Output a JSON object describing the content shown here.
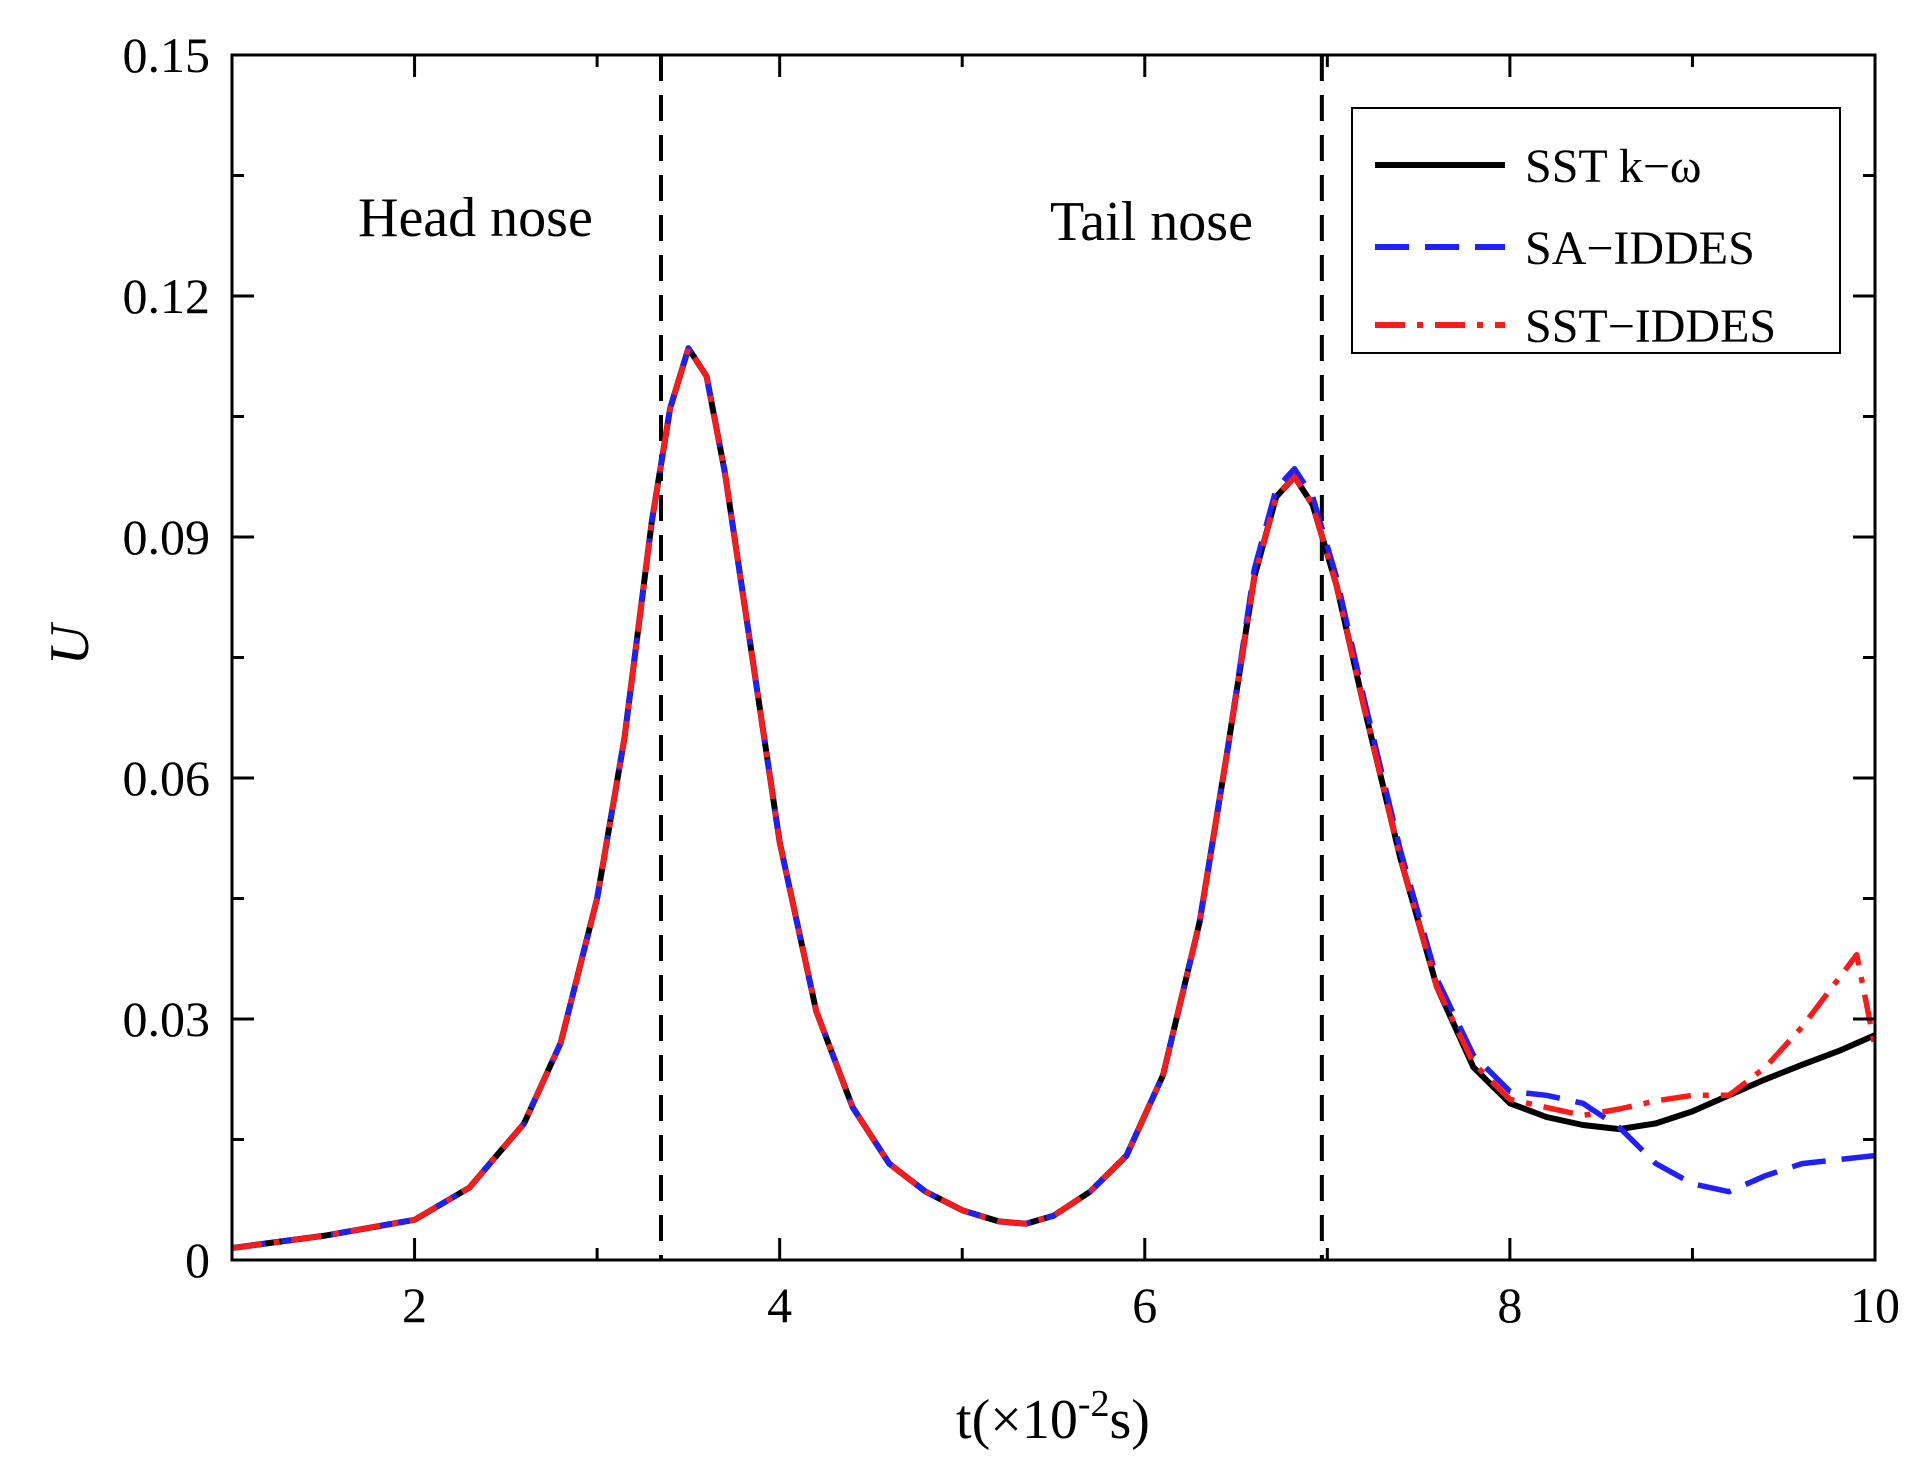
{
  "chart_data": {
    "type": "line",
    "title": "",
    "xlabel": "t(×10",
    "xlabel_sup": "-2",
    "xlabel_end": "s)",
    "ylabel": "U",
    "xlim": [
      1,
      10
    ],
    "ylim": [
      0,
      0.15
    ],
    "x_ticks": [
      2,
      4,
      6,
      8,
      10
    ],
    "x_tick_labels": [
      "2",
      "4",
      "6",
      "8",
      "10"
    ],
    "y_ticks": [
      0,
      0.03,
      0.06,
      0.09,
      0.12,
      0.15
    ],
    "y_tick_labels": [
      "0",
      "0.03",
      "0.06",
      "0.09",
      "0.12",
      "0.15"
    ],
    "grid": false,
    "legend_position": "top-right",
    "reference_lines": [
      {
        "x": 3.35,
        "label": "Head nose",
        "style": "dashed"
      },
      {
        "x": 6.97,
        "label": "Tail nose",
        "style": "dashed"
      }
    ],
    "series": [
      {
        "name": "SST k−ω",
        "color": "#000000",
        "style": "solid",
        "x": [
          1.0,
          1.5,
          2.0,
          2.3,
          2.6,
          2.8,
          3.0,
          3.15,
          3.3,
          3.4,
          3.5,
          3.6,
          3.7,
          3.85,
          4.0,
          4.2,
          4.4,
          4.6,
          4.8,
          5.0,
          5.2,
          5.35,
          5.5,
          5.7,
          5.9,
          6.1,
          6.3,
          6.45,
          6.6,
          6.72,
          6.82,
          6.92,
          7.05,
          7.2,
          7.4,
          7.6,
          7.8,
          8.0,
          8.2,
          8.4,
          8.6,
          8.8,
          9.0,
          9.2,
          9.4,
          9.6,
          9.8,
          10.0
        ],
        "y": [
          0.0015,
          0.003,
          0.005,
          0.009,
          0.017,
          0.027,
          0.045,
          0.065,
          0.092,
          0.106,
          0.1135,
          0.11,
          0.098,
          0.075,
          0.052,
          0.031,
          0.019,
          0.012,
          0.0085,
          0.0062,
          0.0048,
          0.0045,
          0.0055,
          0.0085,
          0.013,
          0.023,
          0.042,
          0.063,
          0.085,
          0.095,
          0.0975,
          0.094,
          0.084,
          0.069,
          0.05,
          0.034,
          0.024,
          0.0195,
          0.0178,
          0.0168,
          0.0163,
          0.017,
          0.0185,
          0.0205,
          0.0225,
          0.0243,
          0.026,
          0.028
        ]
      },
      {
        "name": "SA−IDDES",
        "color": "#1f1fff",
        "style": "dashed",
        "x": [
          1.0,
          1.5,
          2.0,
          2.3,
          2.6,
          2.8,
          3.0,
          3.15,
          3.3,
          3.4,
          3.5,
          3.6,
          3.7,
          3.85,
          4.0,
          4.2,
          4.4,
          4.6,
          4.8,
          5.0,
          5.2,
          5.35,
          5.5,
          5.7,
          5.9,
          6.1,
          6.3,
          6.45,
          6.6,
          6.72,
          6.82,
          6.92,
          7.05,
          7.2,
          7.4,
          7.6,
          7.8,
          8.0,
          8.2,
          8.4,
          8.6,
          8.8,
          9.0,
          9.2,
          9.4,
          9.6,
          9.8,
          10.0
        ],
        "y": [
          0.0015,
          0.003,
          0.005,
          0.009,
          0.017,
          0.027,
          0.045,
          0.065,
          0.092,
          0.106,
          0.1135,
          0.11,
          0.098,
          0.075,
          0.052,
          0.031,
          0.019,
          0.012,
          0.0085,
          0.0062,
          0.0048,
          0.0045,
          0.0055,
          0.0085,
          0.013,
          0.023,
          0.042,
          0.063,
          0.086,
          0.096,
          0.0985,
          0.095,
          0.085,
          0.07,
          0.051,
          0.035,
          0.0255,
          0.021,
          0.0205,
          0.0195,
          0.0165,
          0.012,
          0.0095,
          0.0085,
          0.0105,
          0.012,
          0.0125,
          0.013
        ]
      },
      {
        "name": "SST−IDDES",
        "color": "#ff1a1a",
        "style": "dashdot",
        "x": [
          1.0,
          1.5,
          2.0,
          2.3,
          2.6,
          2.8,
          3.0,
          3.15,
          3.3,
          3.4,
          3.5,
          3.6,
          3.7,
          3.85,
          4.0,
          4.2,
          4.4,
          4.6,
          4.8,
          5.0,
          5.2,
          5.35,
          5.5,
          5.7,
          5.9,
          6.1,
          6.3,
          6.45,
          6.6,
          6.72,
          6.82,
          6.92,
          7.05,
          7.2,
          7.4,
          7.6,
          7.8,
          8.0,
          8.2,
          8.4,
          8.6,
          8.8,
          9.0,
          9.2,
          9.4,
          9.6,
          9.8,
          9.9,
          10.0
        ],
        "y": [
          0.0015,
          0.003,
          0.005,
          0.009,
          0.017,
          0.027,
          0.045,
          0.065,
          0.092,
          0.106,
          0.1135,
          0.11,
          0.098,
          0.075,
          0.052,
          0.031,
          0.019,
          0.012,
          0.0085,
          0.0062,
          0.0048,
          0.0045,
          0.0055,
          0.0085,
          0.013,
          0.023,
          0.042,
          0.063,
          0.085,
          0.095,
          0.0975,
          0.094,
          0.084,
          0.069,
          0.05,
          0.034,
          0.0245,
          0.02,
          0.019,
          0.018,
          0.0188,
          0.0198,
          0.0205,
          0.0205,
          0.024,
          0.029,
          0.035,
          0.038,
          0.0265
        ]
      }
    ]
  }
}
